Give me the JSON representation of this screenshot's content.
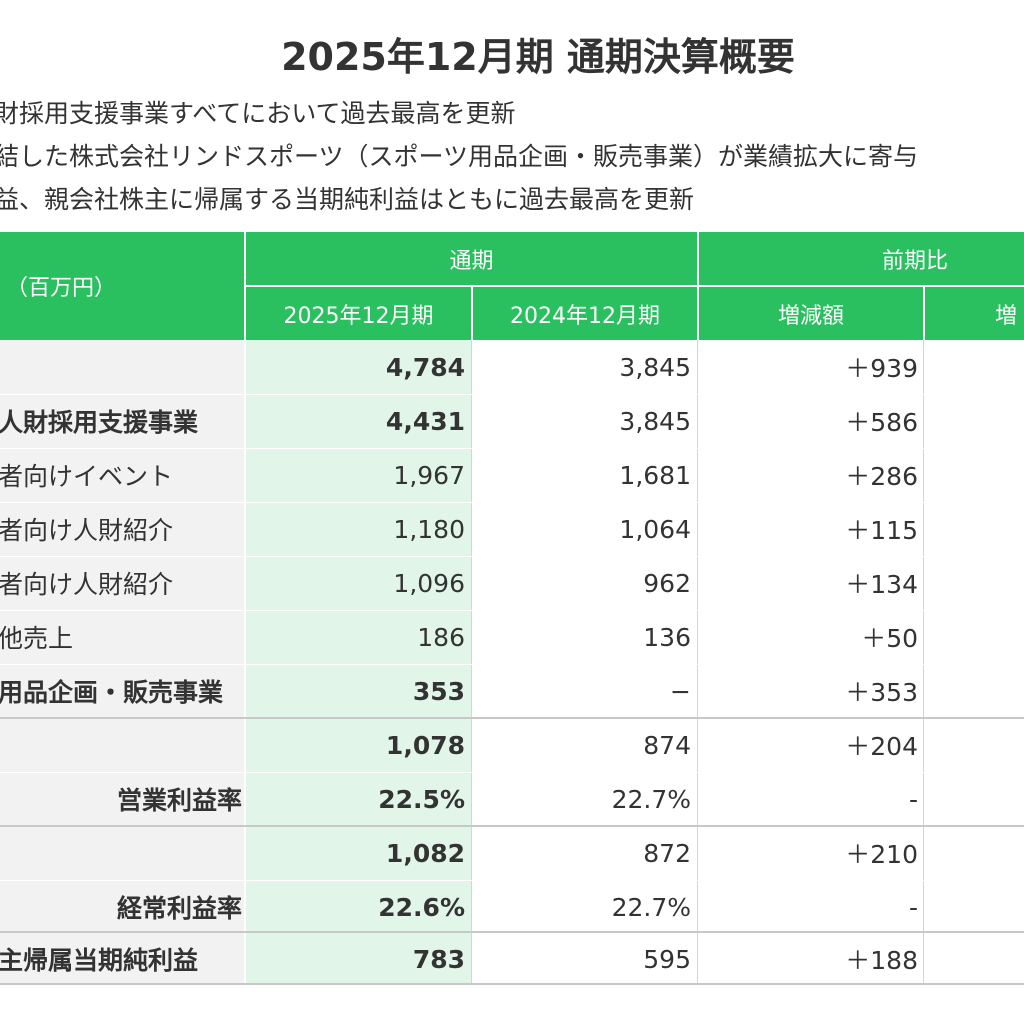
{
  "title": "2025年12月期 通期決算概要",
  "bullets": [
    "財採用支援事業すべてにおいて過去最高を更新",
    "結した株式会社リンドスポーツ（スポーツ用品企画・販売事業）が業績拡大に寄与",
    "益、親会社株主に帰属する当期純利益はともに過去最高を更新"
  ],
  "table": {
    "unit_label": "（百万円）",
    "group_full_year": "通期",
    "group_yoy": "前期比",
    "col_current": "2025年12月期",
    "col_previous": "2024年12月期",
    "col_diff": "増減額",
    "col_rate": "増",
    "rows": [
      {
        "label": "",
        "current": "4,784",
        "previous": "3,845",
        "diff": "＋939",
        "bold": true
      },
      {
        "label": "人財採用支援事業",
        "current": "4,431",
        "previous": "3,845",
        "diff": "＋586",
        "bold": true
      },
      {
        "label": "者向けイベント",
        "current": "1,967",
        "previous": "1,681",
        "diff": "＋286",
        "bold": false
      },
      {
        "label": "者向け人財紹介",
        "current": "1,180",
        "previous": "1,064",
        "diff": "＋115",
        "bold": false
      },
      {
        "label": "者向け人財紹介",
        "current": "1,096",
        "previous": "962",
        "diff": "＋134",
        "bold": false
      },
      {
        "label": "他売上",
        "current": "186",
        "previous": "136",
        "diff": "＋50",
        "bold": false
      },
      {
        "label": "用品企画・販売事業",
        "current": "353",
        "previous": "−",
        "diff": "＋353",
        "bold": true
      },
      {
        "label": "",
        "current": "1,078",
        "previous": "874",
        "diff": "＋204",
        "bold": true
      },
      {
        "label": "営業利益率",
        "current": "22.5%",
        "previous": "22.7%",
        "diff": "-",
        "bold": true,
        "align": "right"
      },
      {
        "label": "",
        "current": "1,082",
        "previous": "872",
        "diff": "＋210",
        "bold": true
      },
      {
        "label": "経常利益率",
        "current": "22.6%",
        "previous": "22.7%",
        "diff": "-",
        "bold": true,
        "align": "right"
      },
      {
        "label": "主帰属当期純利益",
        "current": "783",
        "previous": "595",
        "diff": "＋188",
        "bold": true
      }
    ]
  },
  "colors": {
    "header_green": "#2ac05f",
    "current_column": "#e2f5e9",
    "label_column": "#f2f2f2"
  }
}
